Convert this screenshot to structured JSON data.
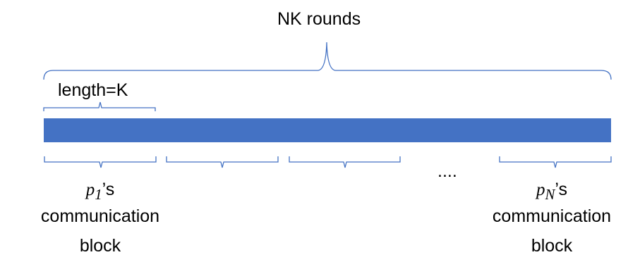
{
  "title": "NK rounds",
  "length_label": "length=K",
  "ellipsis": "....",
  "blocks": [
    {
      "var": "p",
      "sub": "1",
      "suffix": "’s",
      "line2": "communication",
      "line3": "block"
    },
    {
      "var": "p",
      "sub": "N",
      "suffix": "’s",
      "line2": "communication",
      "line3": "block"
    }
  ],
  "colors": {
    "timeline_bar": "#4472C4",
    "brace": "#4472C4",
    "text": "#000000"
  }
}
